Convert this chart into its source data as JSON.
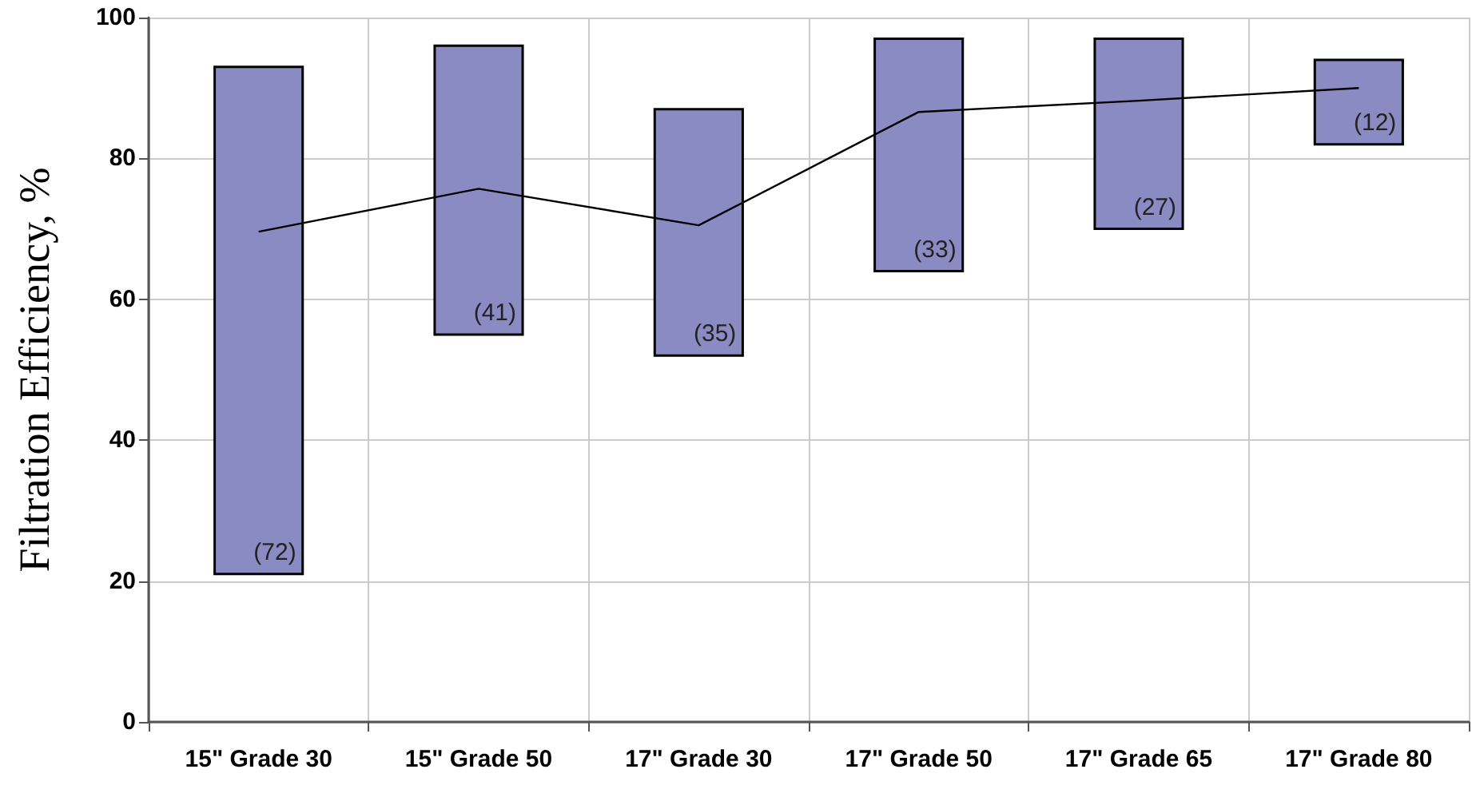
{
  "chart_data": {
    "type": "bar",
    "ylabel": "Filtration Efficiency, %",
    "categories": [
      "15\" Grade 30",
      "15\" Grade 50",
      "17\" Grade 30",
      "17\" Grade 50",
      "17\" Grade 65",
      "17\" Grade 80"
    ],
    "series": [
      {
        "color": "#8b8bc4",
        "base": [
          21,
          55,
          52,
          64,
          70,
          82
        ],
        "values": [
          72,
          41,
          35,
          33,
          27,
          12
        ],
        "value_labels": [
          "(72)",
          "(41)",
          "(35)",
          "(33)",
          "(27)",
          "(12)"
        ]
      },
      {
        "type": "line",
        "color": "#000000",
        "values": [
          69.6,
          75.7,
          70.5,
          86.6,
          88.2,
          90.0
        ]
      }
    ],
    "ylim": [
      0,
      100
    ],
    "yticks": [
      0,
      20,
      40,
      60,
      80,
      100
    ],
    "grid": true,
    "marker": "none",
    "line_style": "solid"
  }
}
